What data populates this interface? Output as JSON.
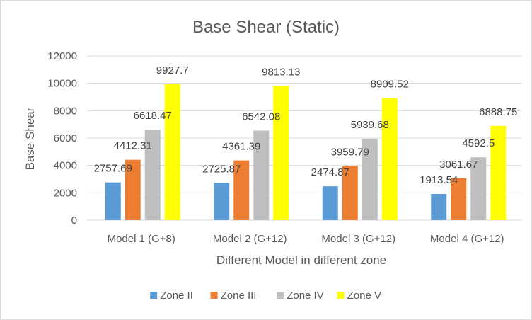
{
  "chart_data": {
    "type": "bar",
    "title": "Base Shear (Static)",
    "xlabel": "Different Model in different zone",
    "ylabel": "Base Shear",
    "ylim": [
      0,
      12000
    ],
    "yticks": [
      0,
      2000,
      4000,
      6000,
      8000,
      10000,
      12000
    ],
    "grid": true,
    "legend_position": "bottom",
    "categories": [
      "Model 1 (G+8)",
      "Model 2 (G+12)",
      "Model 3 (G+12)",
      "Model 4 (G+12)"
    ],
    "series": [
      {
        "name": "Zone II",
        "color": "#5b9bd5",
        "values": [
          2757.69,
          2725.87,
          2474.87,
          1913.54
        ],
        "labels": [
          "2757.69",
          "2725.87",
          "2474.87",
          "1913.54"
        ]
      },
      {
        "name": "Zone III",
        "color": "#ed7d31",
        "values": [
          4412.31,
          4361.39,
          3959.79,
          3061.67
        ],
        "labels": [
          "4412.31",
          "4361.39",
          "3959.79",
          "3061.67"
        ]
      },
      {
        "name": "Zone IV",
        "color": "#bfbfbf",
        "values": [
          6618.47,
          6542.08,
          5939.68,
          4592.5
        ],
        "labels": [
          "6618.47",
          "6542.08",
          "5939.68",
          "4592.5"
        ]
      },
      {
        "name": "Zone V",
        "color": "#ffff00",
        "values": [
          9927.7,
          9813.13,
          8909.52,
          6888.75
        ],
        "labels": [
          "9927.7",
          "9813.13",
          "8909.52",
          "6888.75"
        ]
      }
    ]
  }
}
